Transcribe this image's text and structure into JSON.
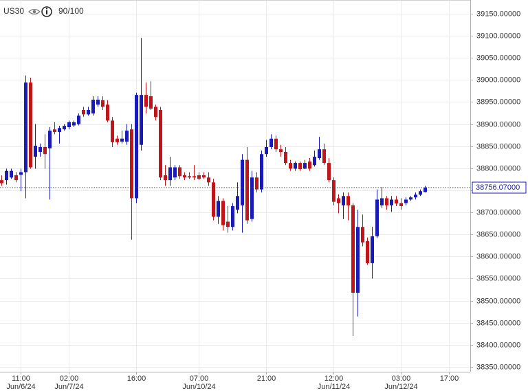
{
  "chart_data": {
    "type": "candlestick",
    "symbol": "US30",
    "score": "90/100",
    "up_color": "#1a1ab8",
    "down_color": "#c0151b",
    "grid": true,
    "ylim": [
      38339,
      39181
    ],
    "yticks": [
      {
        "value": 38350,
        "label": "38350.00000"
      },
      {
        "value": 38400,
        "label": "38400.00000"
      },
      {
        "value": 38450,
        "label": "38450.00000"
      },
      {
        "value": 38500,
        "label": "38500.00000"
      },
      {
        "value": 38550,
        "label": "38550.00000"
      },
      {
        "value": 38600,
        "label": "38600.00000"
      },
      {
        "value": 38650,
        "label": "38650.00000"
      },
      {
        "value": 38700,
        "label": "38700.00000"
      },
      {
        "value": 38750,
        "label": "38750.00000"
      },
      {
        "value": 38800,
        "label": "38800.00000"
      },
      {
        "value": 38850,
        "label": "38850.00000"
      },
      {
        "value": 38900,
        "label": "38900.00000"
      },
      {
        "value": 38950,
        "label": "38950.00000"
      },
      {
        "value": 39000,
        "label": "39000.00000"
      },
      {
        "value": 39050,
        "label": "39050.00000"
      },
      {
        "value": 39100,
        "label": "39100.00000"
      },
      {
        "value": 39150,
        "label": "39150.00000"
      }
    ],
    "last_price": {
      "value": 38756.07,
      "label": "38756.07000"
    },
    "categories": [
      null,
      null,
      null,
      null,
      "11:00",
      null,
      null,
      null,
      null,
      null,
      null,
      null,
      null,
      null,
      "02:00",
      null,
      null,
      null,
      null,
      null,
      null,
      null,
      null,
      null,
      null,
      null,
      null,
      null,
      "16:00",
      null,
      null,
      null,
      null,
      null,
      null,
      null,
      null,
      null,
      null,
      null,
      null,
      "07:00",
      null,
      null,
      null,
      null,
      null,
      null,
      null,
      null,
      null,
      null,
      null,
      null,
      null,
      "21:00",
      null,
      null,
      null,
      null,
      null,
      null,
      null,
      null,
      null,
      null,
      null,
      null,
      null,
      "12:00",
      null,
      null,
      null,
      null,
      null,
      null,
      null,
      null,
      null,
      null,
      null,
      null,
      null,
      "03:00",
      null,
      null,
      null,
      null,
      null,
      null,
      null,
      null,
      null,
      "17:00"
    ],
    "category_dates": [
      null,
      null,
      null,
      null,
      "Jun/6/24",
      null,
      null,
      null,
      null,
      null,
      null,
      null,
      null,
      null,
      "Jun/7/24",
      null,
      null,
      null,
      null,
      null,
      null,
      null,
      null,
      null,
      null,
      null,
      null,
      null,
      null,
      null,
      null,
      null,
      null,
      null,
      null,
      null,
      null,
      null,
      null,
      null,
      null,
      "Jun/10/24",
      null,
      null,
      null,
      null,
      null,
      null,
      null,
      null,
      null,
      null,
      null,
      null,
      null,
      null,
      null,
      null,
      null,
      null,
      null,
      null,
      null,
      null,
      null,
      null,
      null,
      null,
      null,
      "Jun/11/24",
      null,
      null,
      null,
      null,
      null,
      null,
      null,
      null,
      null,
      null,
      null,
      null,
      null,
      "Jun/12/24",
      null,
      null,
      null,
      null,
      null,
      null,
      null,
      null,
      null,
      null
    ],
    "open": [
      38773,
      38773,
      38779,
      38784,
      38785,
      38791,
      38994,
      38826,
      38837,
      38848,
      38845,
      38888,
      38882,
      38888,
      38893,
      38897,
      38900,
      38932,
      38922,
      38924,
      38944,
      38954,
      38944,
      38908,
      38867,
      38860,
      38860,
      38888,
      38732,
      38853,
      38966,
      38963,
      38939,
      38932,
      38784,
      38773,
      38779,
      38802,
      38784,
      38782,
      38782,
      38784,
      38784,
      38779,
      38768,
      38690,
      38726,
      38679,
      38667,
      38706,
      38716,
      38819,
      38685,
      38779,
      38752,
      38832,
      38848,
      38867,
      38843,
      38837,
      38812,
      38799,
      38812,
      38799,
      38815,
      38807,
      38823,
      38843,
      38812,
      38773,
      38732,
      38716,
      38737,
      38716,
      38518,
      38667,
      38635,
      38585,
      38646,
      38716,
      38732,
      38716,
      38729,
      38721,
      38721,
      38729,
      38734,
      38740,
      38746,
      null,
      null,
      null,
      null,
      null
    ],
    "high": [
      38784,
      38799,
      38799,
      38791,
      38799,
      39010,
      39005,
      38900,
      38856,
      38877,
      38893,
      38904,
      38896,
      38900,
      38908,
      38908,
      38924,
      38939,
      38939,
      38963,
      38963,
      38963,
      38954,
      38916,
      38874,
      38885,
      38900,
      38900,
      38971,
      39095,
      38994,
      38997,
      38944,
      38939,
      38807,
      38826,
      38807,
      38807,
      38791,
      38791,
      38807,
      38791,
      38791,
      38791,
      38776,
      38737,
      38732,
      38714,
      38721,
      38768,
      38832,
      38848,
      38794,
      38791,
      38840,
      38864,
      38877,
      38874,
      38853,
      38848,
      38819,
      38815,
      38815,
      38819,
      38823,
      38840,
      38871,
      38856,
      38823,
      38779,
      38741,
      38745,
      38745,
      38721,
      38706,
      38695,
      38643,
      38667,
      38752,
      38757,
      38737,
      38737,
      38737,
      38732,
      38734,
      38737,
      38745,
      38752,
      38760,
      null,
      null,
      null,
      null,
      null
    ],
    "low": [
      38760,
      38763,
      38776,
      38768,
      38748,
      38732,
      38799,
      38799,
      38826,
      38799,
      38729,
      38877,
      38856,
      38885,
      38888,
      38893,
      38897,
      38916,
      38919,
      38919,
      38939,
      38932,
      38904,
      38848,
      38853,
      38856,
      38853,
      38638,
      38721,
      38840,
      38924,
      38932,
      38908,
      38773,
      38760,
      38760,
      38773,
      38776,
      38773,
      38776,
      38773,
      38773,
      38776,
      38760,
      38682,
      38674,
      38659,
      38654,
      38659,
      38698,
      38654,
      38674,
      38679,
      38745,
      38745,
      38826,
      38843,
      38837,
      38826,
      38807,
      38794,
      38794,
      38794,
      38798,
      38794,
      38804,
      38819,
      38807,
      38768,
      38716,
      38698,
      38685,
      38682,
      38420,
      38464,
      38623,
      38581,
      38550,
      38642,
      38710,
      38706,
      38701,
      38714,
      38706,
      38716,
      38726,
      38729,
      38737,
      38745,
      null,
      null,
      null,
      null,
      null
    ],
    "close": [
      38766,
      38794,
      38794,
      38773,
      38791,
      38994,
      38802,
      38851,
      38848,
      38832,
      38885,
      38882,
      38891,
      38896,
      38904,
      38904,
      38919,
      38922,
      38932,
      38955,
      38955,
      38939,
      38908,
      38859,
      38859,
      38867,
      38885,
      38732,
      38966,
      38966,
      38939,
      38935,
      38916,
      38779,
      38773,
      38802,
      38802,
      38782,
      38779,
      38779,
      38779,
      38776,
      38779,
      38768,
      38690,
      38726,
      38671,
      38667,
      38714,
      38737,
      38819,
      38682,
      38779,
      38752,
      38832,
      38848,
      38867,
      38843,
      38837,
      38812,
      38799,
      38812,
      38798,
      38812,
      38799,
      38826,
      38843,
      38812,
      38773,
      38724,
      38721,
      38737,
      38716,
      38518,
      38667,
      38632,
      38585,
      38646,
      38729,
      38732,
      38716,
      38729,
      38720,
      38714,
      38729,
      38734,
      38740,
      38748,
      38756.07,
      null,
      null,
      null,
      null,
      null
    ]
  }
}
